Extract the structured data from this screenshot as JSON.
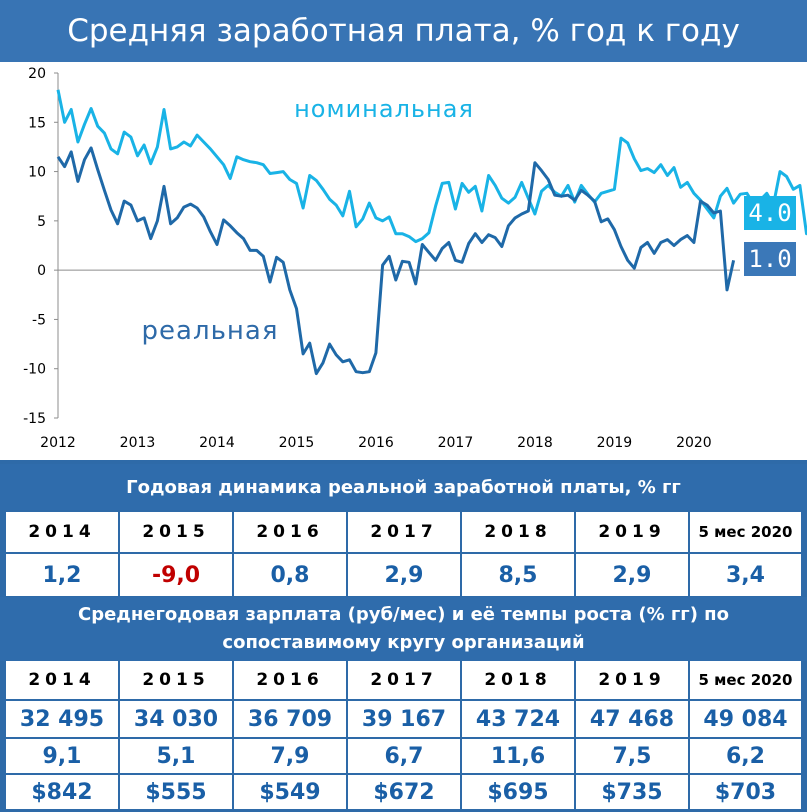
{
  "title": "Средняя заработная плата, % год к году",
  "chart_data": {
    "type": "line",
    "ylim": [
      -15,
      20
    ],
    "yticks": [
      -15,
      -10,
      -5,
      0,
      5,
      10,
      15,
      20
    ],
    "xticks": [
      "2012",
      "2013",
      "2014",
      "2015",
      "2016",
      "2017",
      "2018",
      "2019",
      "2020"
    ],
    "x_start": 2012.0,
    "x_step": 0.0833333,
    "series": [
      {
        "name": "номинальная",
        "color": "#19b3e6",
        "end_label": "4.0",
        "values": [
          18.3,
          15.0,
          16.3,
          13.0,
          14.8,
          16.4,
          14.6,
          13.9,
          12.3,
          11.8,
          14.0,
          13.5,
          11.6,
          12.7,
          10.8,
          12.5,
          16.3,
          12.3,
          12.5,
          13.0,
          12.6,
          13.7,
          13.0,
          12.3,
          11.5,
          10.7,
          9.3,
          11.5,
          11.2,
          11.0,
          10.9,
          10.7,
          9.8,
          9.9,
          10.0,
          9.2,
          8.8,
          6.3,
          9.6,
          9.1,
          8.2,
          7.2,
          6.6,
          5.5,
          8.0,
          4.4,
          5.2,
          6.8,
          5.3,
          5.0,
          5.4,
          3.7,
          3.7,
          3.4,
          2.9,
          3.2,
          3.8,
          6.5,
          8.8,
          8.9,
          6.2,
          8.8,
          7.9,
          8.5,
          6.0,
          9.6,
          8.6,
          7.3,
          6.8,
          7.4,
          8.9,
          7.3,
          5.7,
          8.0,
          8.6,
          7.9,
          7.5,
          8.6,
          6.9,
          8.6,
          7.7,
          6.9,
          7.8,
          8.0,
          8.2,
          13.4,
          12.9,
          11.3,
          10.1,
          10.3,
          9.9,
          10.7,
          9.6,
          10.4,
          8.4,
          8.9,
          7.8,
          7.1,
          6.2,
          5.3,
          7.5,
          8.3,
          6.8,
          7.7,
          7.8,
          6.7,
          7.1,
          7.8,
          6.6,
          10.0,
          9.5,
          8.2,
          8.6,
          3.7,
          4.0
        ]
      },
      {
        "name": "реальная",
        "color": "#1f69a8",
        "end_label": "1.0",
        "values": [
          11.5,
          10.5,
          12.0,
          9.0,
          11.2,
          12.4,
          10.2,
          8.1,
          6.1,
          4.7,
          7.0,
          6.6,
          5.0,
          5.3,
          3.2,
          5.0,
          8.5,
          4.7,
          5.3,
          6.4,
          6.7,
          6.3,
          5.4,
          3.9,
          2.6,
          5.1,
          4.5,
          3.8,
          3.2,
          2.0,
          2.0,
          1.4,
          -1.2,
          1.3,
          0.8,
          -2.0,
          -3.9,
          -8.5,
          -7.4,
          -10.5,
          -9.4,
          -7.5,
          -8.6,
          -9.3,
          -9.1,
          -10.3,
          -10.4,
          -10.3,
          -8.4,
          0.5,
          1.4,
          -1.0,
          0.9,
          0.8,
          -1.4,
          2.6,
          1.8,
          1.0,
          2.2,
          2.8,
          1.0,
          0.8,
          2.7,
          3.7,
          2.8,
          3.6,
          3.3,
          2.4,
          4.5,
          5.3,
          5.7,
          6.0,
          10.9,
          10.1,
          9.2,
          7.6,
          7.5,
          7.6,
          7.1,
          8.1,
          7.6,
          7.0,
          4.9,
          5.2,
          4.1,
          2.4,
          1.0,
          0.2,
          2.3,
          2.8,
          1.7,
          2.8,
          3.1,
          2.5,
          3.1,
          3.5,
          2.8,
          7.0,
          6.6,
          5.8,
          6.0,
          -2.0,
          1.0
        ]
      }
    ],
    "annotations": [
      "номинальная",
      "реальная"
    ]
  },
  "table1": {
    "title": "Годовая динамика реальной заработной платы, % гг",
    "years": [
      "2014",
      "2015",
      "2016",
      "2017",
      "2018",
      "2019",
      "5 мес 2020"
    ],
    "values": [
      "1,2",
      "-9,0",
      "0,8",
      "2,9",
      "8,5",
      "2,9",
      "3,4"
    ],
    "negative_color": "#c00000"
  },
  "table2": {
    "title_line1": "Среднегодовая зарплата (руб/мес) и её темпы роста (% гг)  по",
    "title_line2": "сопоставимому кругу организаций",
    "years": [
      "2014",
      "2015",
      "2016",
      "2017",
      "2018",
      "2019",
      "5 мес 2020"
    ],
    "salary": [
      "32 495",
      "34 030",
      "36 709",
      "39 167",
      "43 724",
      "47 468",
      "49 084"
    ],
    "growth": [
      "9,1",
      "5,1",
      "7,9",
      "6,7",
      "11,6",
      "7,5",
      "6,2"
    ],
    "usd": [
      "$842",
      "$555",
      "$549",
      "$672",
      "$695",
      "$735",
      "$703"
    ]
  },
  "colors": {
    "frame": "#2e6aa8",
    "nominal": "#19b3e6",
    "real": "#1f69a8",
    "badge_nominal": "#19b3e6",
    "badge_real": "#3b78b8"
  }
}
